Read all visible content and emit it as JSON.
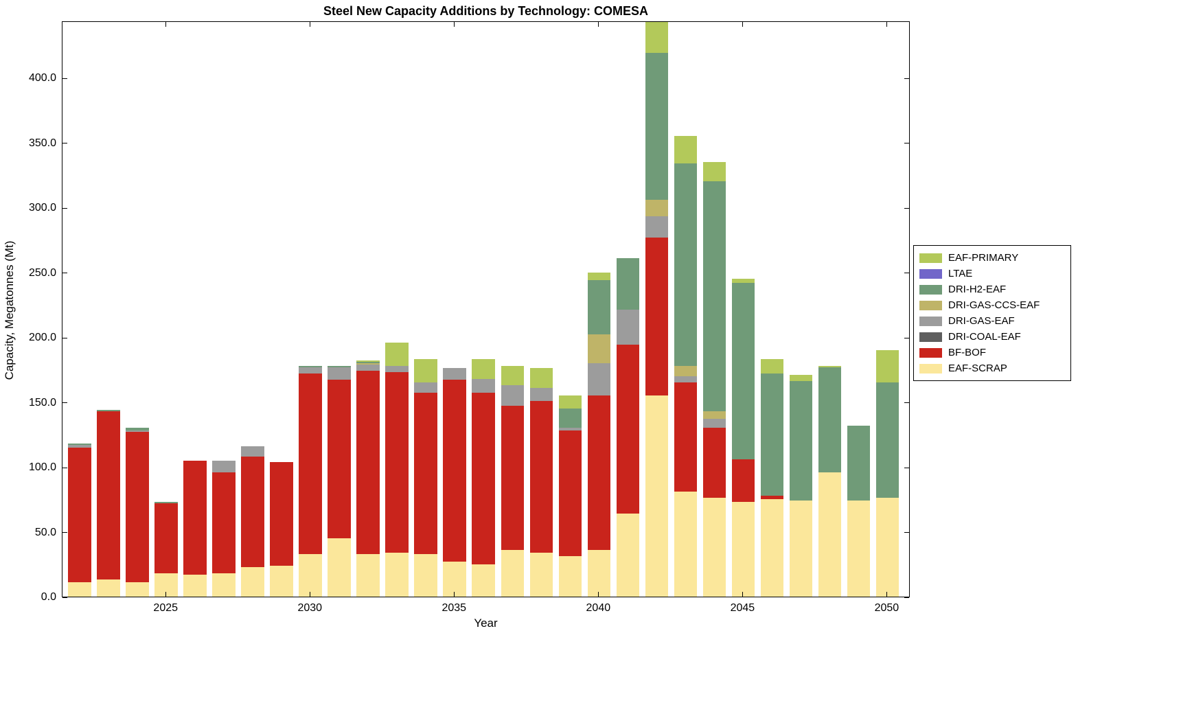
{
  "chart_data": {
    "type": "bar",
    "stacked": true,
    "title": "Steel New Capacity Additions by Technology: COMESA",
    "xlabel": "Year",
    "ylabel": "Capacity, Megatonnes (Mt)",
    "ylim": [
      0,
      444
    ],
    "xlim": [
      2021.4,
      2050.8
    ],
    "yticks": [
      0,
      50,
      100,
      150,
      200,
      250,
      300,
      350,
      400
    ],
    "ytick_labels": [
      "0.0",
      "50.0",
      "100.0",
      "150.0",
      "200.0",
      "250.0",
      "300.0",
      "350.0",
      "400.0"
    ],
    "xticks": [
      2025,
      2030,
      2035,
      2040,
      2045,
      2050
    ],
    "grid": false,
    "legend_position": "right-outside",
    "legend_order_top_to_bottom": [
      "EAF-PRIMARY",
      "LTAE",
      "DRI-H2-EAF",
      "DRI-GAS-CCS-EAF",
      "DRI-GAS-EAF",
      "DRI-COAL-EAF",
      "BF-BOF",
      "EAF-SCRAP"
    ],
    "years": [
      2022,
      2023,
      2024,
      2025,
      2026,
      2027,
      2028,
      2029,
      2030,
      2031,
      2032,
      2033,
      2034,
      2035,
      2036,
      2037,
      2038,
      2039,
      2040,
      2041,
      2042,
      2043,
      2044,
      2045,
      2046,
      2047,
      2048,
      2049,
      2050
    ],
    "series": [
      {
        "name": "EAF-SCRAP",
        "color": "#FBE79B",
        "values": [
          11,
          13,
          11,
          18,
          17,
          18,
          23,
          24,
          33,
          45,
          33,
          34,
          33,
          27,
          25,
          36,
          34,
          31,
          36,
          64,
          155,
          81,
          76,
          73,
          75,
          74,
          96,
          74,
          76
        ]
      },
      {
        "name": "BF-BOF",
        "color": "#C9241C",
        "values": [
          104,
          130,
          116,
          54,
          88,
          78,
          85,
          80,
          139,
          122,
          141,
          139,
          124,
          140,
          132,
          111,
          117,
          97,
          119,
          130,
          122,
          84,
          54,
          33,
          3,
          0,
          0,
          0,
          0
        ]
      },
      {
        "name": "DRI-COAL-EAF",
        "color": "#5E5E5E",
        "values": [
          0,
          0,
          0,
          0,
          0,
          0,
          0,
          0,
          0,
          0,
          0,
          0,
          0,
          0,
          0,
          0,
          0,
          0,
          0,
          0,
          0,
          0,
          0,
          0,
          0,
          0,
          0,
          0,
          0
        ]
      },
      {
        "name": "DRI-GAS-EAF",
        "color": "#9C9C9C",
        "values": [
          2,
          0,
          1,
          0,
          0,
          9,
          8,
          0,
          5,
          10,
          5,
          5,
          8,
          9,
          11,
          16,
          10,
          2,
          25,
          27,
          16,
          5,
          7,
          0,
          0,
          0,
          0,
          0,
          0
        ]
      },
      {
        "name": "DRI-GAS-CCS-EAF",
        "color": "#BFB468",
        "values": [
          0,
          0,
          0,
          0,
          0,
          0,
          0,
          0,
          0,
          0,
          1,
          0,
          0,
          0,
          0,
          0,
          0,
          0,
          22,
          0,
          13,
          8,
          6,
          0,
          0,
          0,
          0,
          0,
          0
        ]
      },
      {
        "name": "DRI-H2-EAF",
        "color": "#709B78",
        "values": [
          1,
          1,
          2,
          1,
          0,
          0,
          0,
          0,
          1,
          1,
          1,
          0,
          0,
          0,
          0,
          0,
          0,
          15,
          42,
          40,
          113,
          156,
          177,
          136,
          94,
          92,
          81,
          58,
          89
        ]
      },
      {
        "name": "LTAE",
        "color": "#7166C9",
        "values": [
          0,
          0,
          0,
          0,
          0,
          0,
          0,
          0,
          0,
          0,
          0,
          0,
          0,
          0,
          0,
          0,
          0,
          0,
          0,
          0,
          0,
          0,
          0,
          0,
          0,
          0,
          0,
          0,
          0
        ]
      },
      {
        "name": "EAF-PRIMARY",
        "color": "#B3C95A",
        "values": [
          0,
          0,
          0,
          0,
          0,
          0,
          0,
          0,
          0,
          0,
          1,
          18,
          18,
          0,
          15,
          15,
          15,
          10,
          6,
          0,
          24,
          21,
          15,
          3,
          11,
          5,
          1,
          0,
          25
        ]
      }
    ]
  }
}
